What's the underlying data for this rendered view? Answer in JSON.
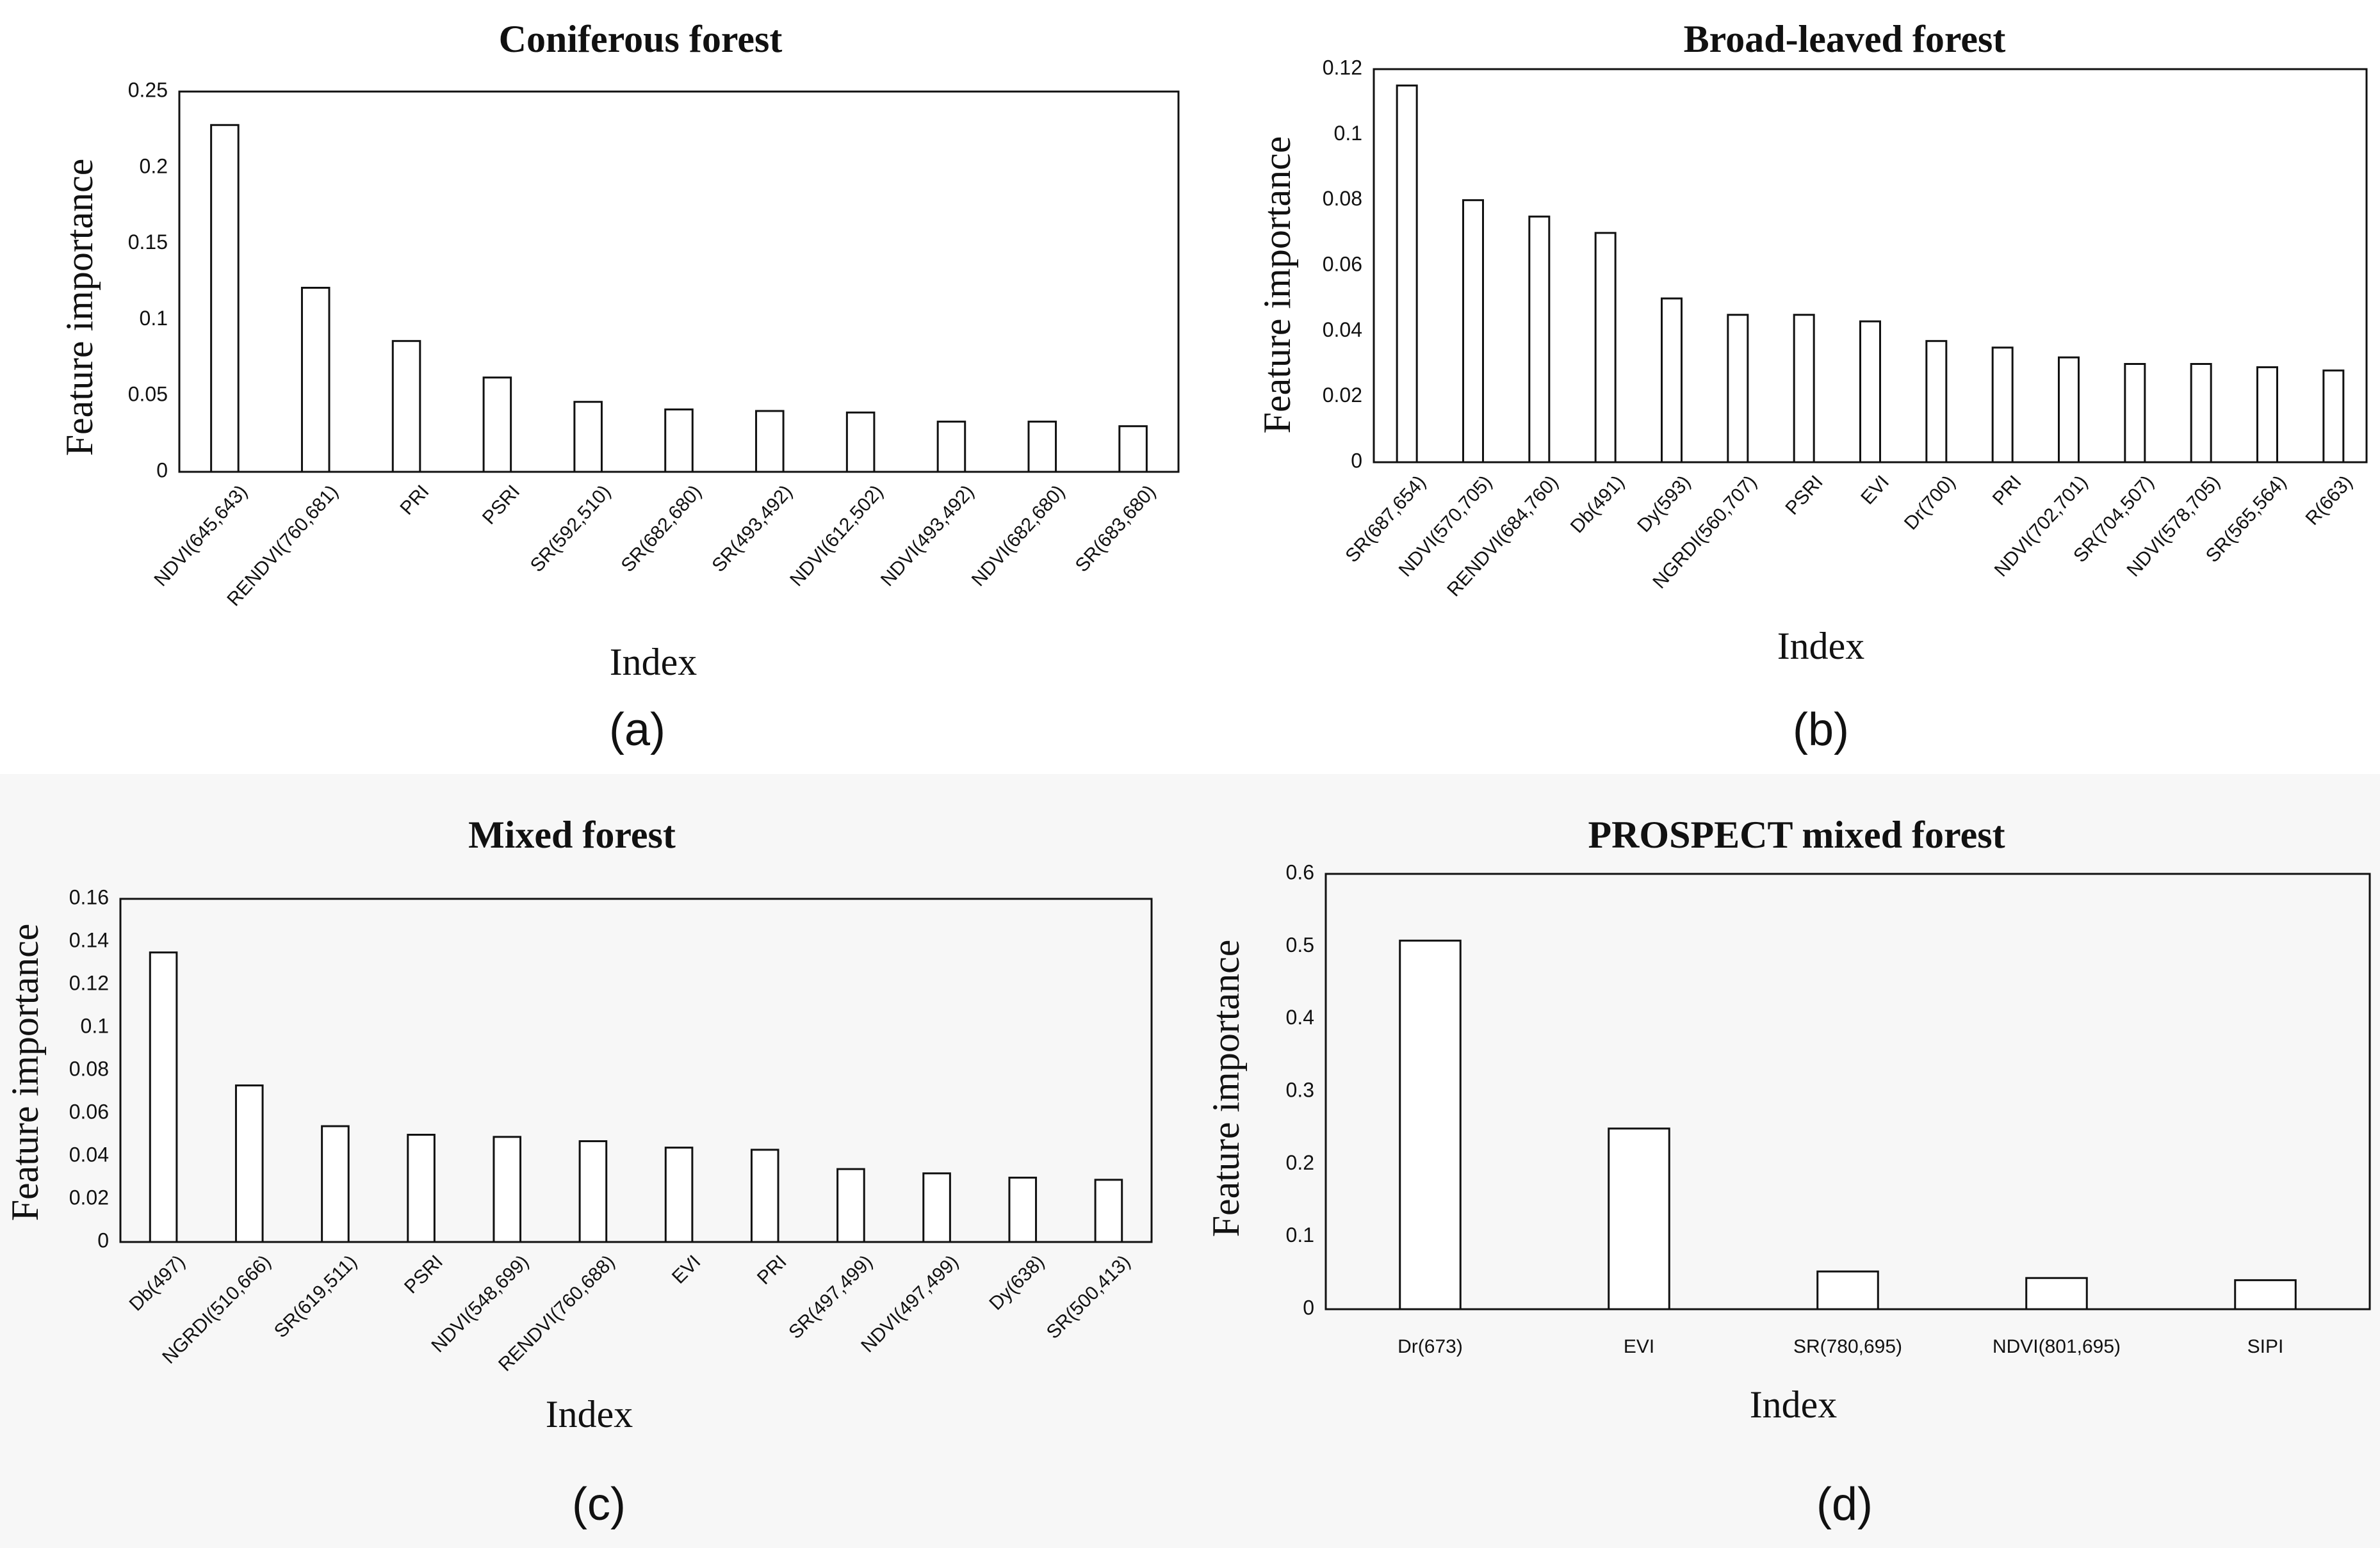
{
  "chart_data": [
    {
      "type": "bar",
      "panel": "(a)",
      "title": "Coniferous forest",
      "xlabel": "Index",
      "ylabel": "Feature importance",
      "ylim": [
        0,
        0.25
      ],
      "yticks": [
        "0",
        "0.05",
        "0.1",
        "0.15",
        "0.2",
        "0.25"
      ],
      "categories": [
        "NDVI(645,643)",
        "RENDVI(760,681)",
        "PRI",
        "PSRI",
        "SR(592,510)",
        "SR(682,680)",
        "SR(493,492)",
        "NDVI(612,502)",
        "NDVI(493,492)",
        "NDVI(682,680)",
        "SR(683,680)"
      ],
      "values": [
        0.228,
        0.121,
        0.086,
        0.062,
        0.046,
        0.041,
        0.04,
        0.039,
        0.033,
        0.033,
        0.03
      ]
    },
    {
      "type": "bar",
      "panel": "(b)",
      "title": "Broad-leaved forest",
      "xlabel": "Index",
      "ylabel": "Feature importance",
      "ylim": [
        0,
        0.12
      ],
      "yticks": [
        "0",
        "0.02",
        "0.04",
        "0.06",
        "0.08",
        "0.1",
        "0.12"
      ],
      "categories": [
        "SR(687,654)",
        "NDVI(570,705)",
        "RENDVI(684,760)",
        "Db(491)",
        "Dy(593)",
        "NGRDI(560,707)",
        "PSRI",
        "EVI",
        "Dr(700)",
        "PRI",
        "NDVI(702,701)",
        "SR(704,507)",
        "NDVI(578,705)",
        "SR(565,564)",
        "R(663)"
      ],
      "values": [
        0.115,
        0.08,
        0.075,
        0.07,
        0.05,
        0.045,
        0.045,
        0.043,
        0.037,
        0.035,
        0.032,
        0.03,
        0.03,
        0.029,
        0.028
      ]
    },
    {
      "type": "bar",
      "panel": "(c)",
      "title": "Mixed forest",
      "xlabel": "Index",
      "ylabel": "Feature importance",
      "ylim": [
        0,
        0.16
      ],
      "yticks": [
        "0",
        "0.02",
        "0.04",
        "0.06",
        "0.08",
        "0.1",
        "0.12",
        "0.14",
        "0.16"
      ],
      "categories": [
        "Db(497)",
        "NGRDI(510,666)",
        "SR(619,511)",
        "PSRI",
        "NDVI(548,699)",
        "RENDVI(760,688)",
        "EVI",
        "PRI",
        "SR(497,499)",
        "NDVI(497,499)",
        "Dy(638)",
        "SR(500,413)"
      ],
      "values": [
        0.135,
        0.073,
        0.054,
        0.05,
        0.049,
        0.047,
        0.044,
        0.043,
        0.034,
        0.032,
        0.03,
        0.029
      ]
    },
    {
      "type": "bar",
      "panel": "(d)",
      "title": "PROSPECT mixed forest",
      "xlabel": "Index",
      "ylabel": "Feature importance",
      "ylim": [
        0,
        0.6
      ],
      "yticks": [
        "0",
        "0.1",
        "0.2",
        "0.3",
        "0.4",
        "0.5",
        "0.6"
      ],
      "categories": [
        "Dr(673)",
        "EVI",
        "SR(780,695)",
        "NDVI(801,695)",
        "SIPI"
      ],
      "values": [
        0.508,
        0.249,
        0.052,
        0.043,
        0.04
      ]
    }
  ]
}
